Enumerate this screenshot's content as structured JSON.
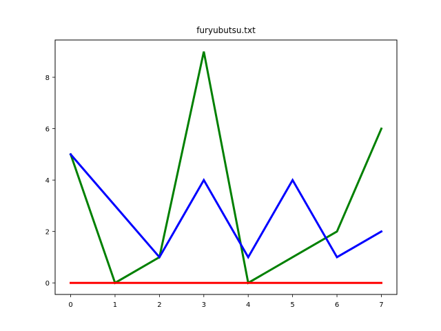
{
  "chart_data": {
    "type": "line",
    "title": "furyubutsu.txt",
    "xlabel": "",
    "ylabel": "",
    "x": [
      0,
      1,
      2,
      3,
      4,
      5,
      6,
      7
    ],
    "xlim": [
      -0.35,
      7.35
    ],
    "ylim": [
      -0.45,
      9.45
    ],
    "xticks": [
      0,
      1,
      2,
      3,
      4,
      5,
      6,
      7
    ],
    "yticks": [
      0,
      2,
      4,
      6,
      8
    ],
    "grid": false,
    "legend": "none",
    "series": [
      {
        "color": "#008000",
        "values": [
          5,
          0,
          1,
          9,
          0,
          1,
          2,
          6
        ]
      },
      {
        "color": "#0000ff",
        "values": [
          5,
          3,
          1,
          4,
          1,
          4,
          1,
          2
        ]
      },
      {
        "color": "#ff0000",
        "values": [
          0,
          0,
          0,
          0,
          0,
          0,
          0,
          0
        ]
      }
    ]
  }
}
